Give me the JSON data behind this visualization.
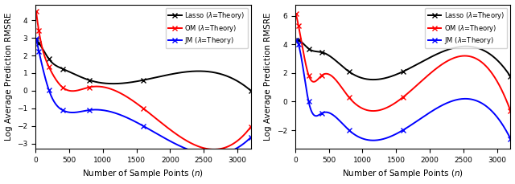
{
  "x_points": [
    10,
    50,
    200,
    400,
    800,
    1600,
    3200
  ],
  "plot1": {
    "lasso": [
      2.85,
      2.7,
      1.8,
      1.25,
      0.6,
      0.6,
      0.0
    ],
    "om": [
      4.5,
      3.4,
      1.35,
      0.2,
      0.2,
      -1.0,
      -2.05
    ],
    "jm": [
      2.95,
      2.25,
      0.03,
      -1.1,
      -1.1,
      -2.0,
      -2.65
    ]
  },
  "plot2": {
    "lasso": [
      4.3,
      4.3,
      3.7,
      3.45,
      2.1,
      2.1,
      1.75
    ],
    "om": [
      6.15,
      5.3,
      1.85,
      1.85,
      0.3,
      0.3,
      -0.65
    ],
    "jm": [
      4.3,
      4.0,
      0.0,
      -0.8,
      -2.0,
      -2.0,
      -2.6
    ]
  },
  "colors": {
    "lasso": "#000000",
    "om": "#ff0000",
    "jm": "#0000ff"
  },
  "legend": {
    "lasso": "Lasso ($\\lambda$=Theory)",
    "om": "OM ($\\lambda$=Theory)",
    "jm": "JM ($\\lambda$=Theory)"
  },
  "xlabel": "Number of Sample Points ($n$)",
  "ylabel": "Log Average Prediction RMSRE",
  "plot1_ylim": [
    -3.3,
    4.9
  ],
  "plot2_ylim": [
    -3.3,
    6.8
  ],
  "plot1_yticks": [
    -3,
    -2,
    -1,
    0,
    1,
    2,
    3,
    4
  ],
  "plot2_yticks": [
    -2,
    0,
    2,
    4,
    6
  ],
  "xlim": [
    0,
    3200
  ],
  "xticks": [
    0,
    500,
    1000,
    1500,
    2000,
    2500,
    3000
  ],
  "marker": "x",
  "markersize": 5,
  "linewidth": 1.4,
  "background_color": "#ffffff"
}
